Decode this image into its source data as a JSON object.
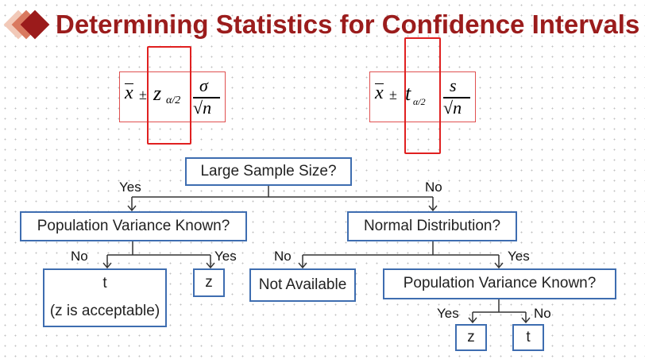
{
  "title": "Determining Statistics for Confidence Intervals",
  "formula_z": {
    "xbar": "x",
    "pm": "±",
    "stat": "z",
    "sub": "α/2",
    "num": "σ",
    "den": "√n"
  },
  "formula_t": {
    "xbar": "x",
    "pm": "±",
    "stat": "t",
    "sub": "α/2",
    "num": "s",
    "den": "√n"
  },
  "nodes": {
    "root": "Large Sample Size?",
    "pop_var_known_1": "Population Variance Known?",
    "normal_dist": "Normal Distribution?",
    "t_acceptable_line1": "t",
    "t_acceptable_line2": "(z is acceptable)",
    "z_1": "z",
    "not_available": "Not Available",
    "pop_var_known_2": "Population Variance Known?",
    "z_2": "z",
    "t_2": "t"
  },
  "edge_labels": {
    "root_yes": "Yes",
    "root_no": "No",
    "pv1_no": "No",
    "pv1_yes": "Yes",
    "nd_no": "No",
    "nd_yes": "Yes",
    "pv2_yes": "Yes",
    "pv2_no": "No"
  },
  "colors": {
    "title": "#9b1c1c",
    "box_border": "#3e6db0",
    "highlight": "#e02020"
  }
}
